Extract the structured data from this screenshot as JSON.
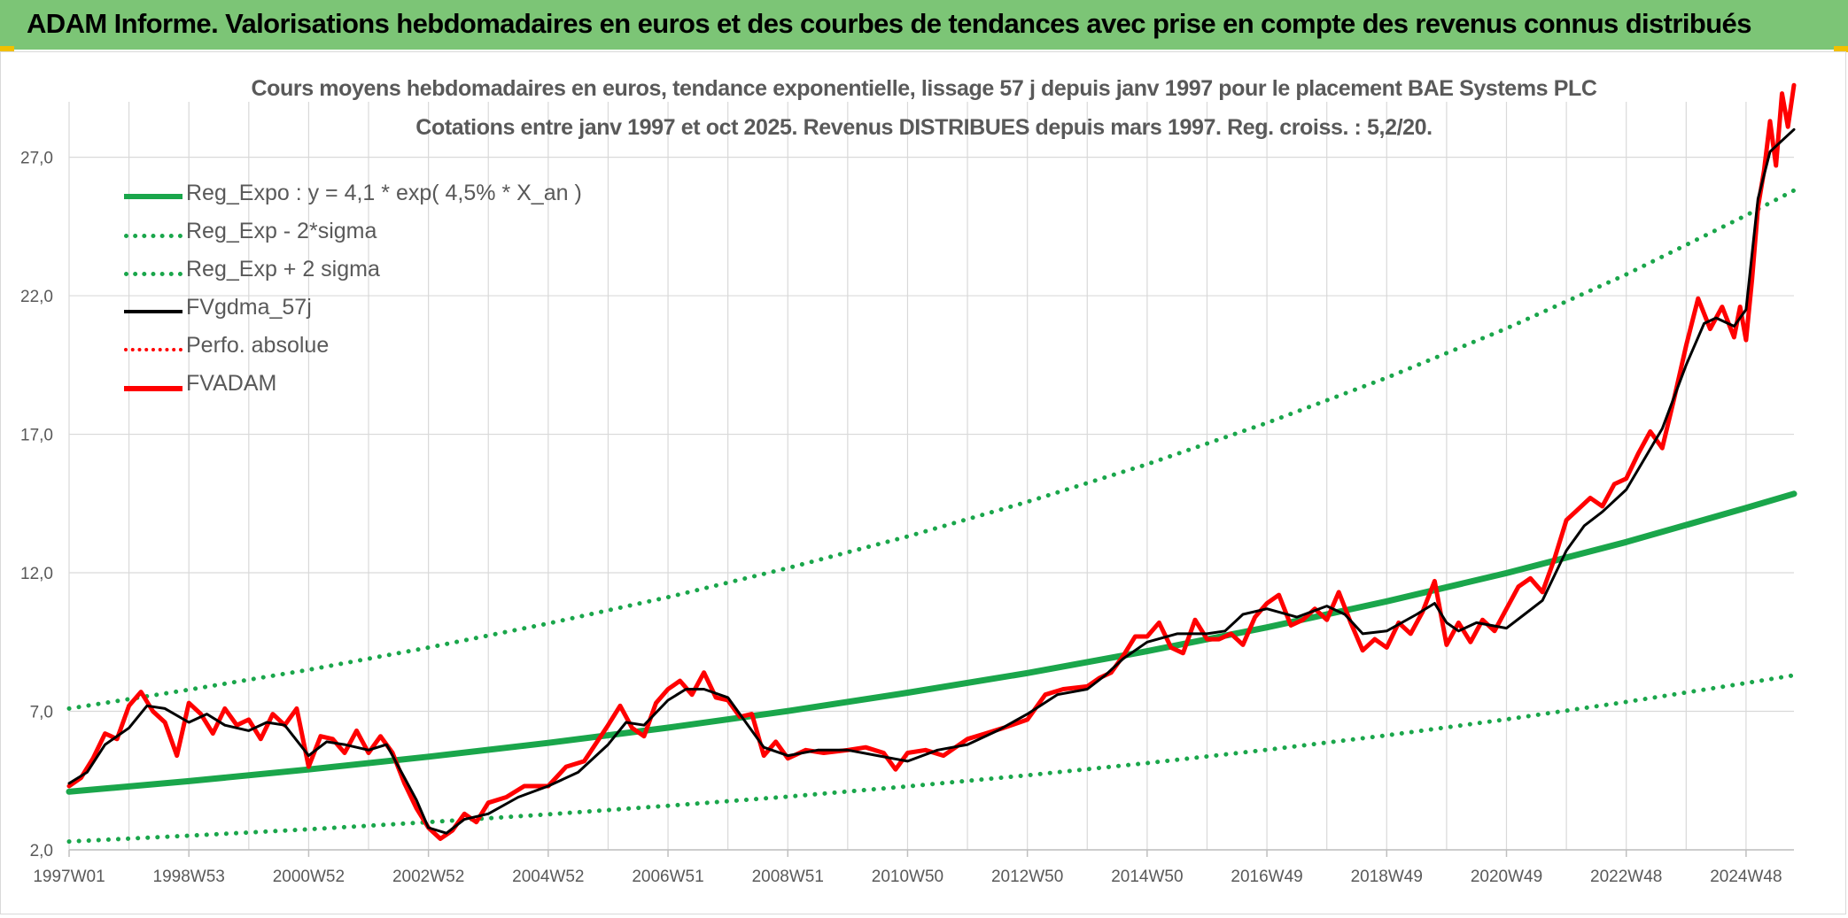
{
  "header": {
    "banner_title": "ADAM Informe. Valorisations hebdomadaires en euros et des courbes de tendances avec prise en compte des revenus connus distribués"
  },
  "colors": {
    "banner": "#7cc576",
    "regression": "#1aa64b",
    "bands": "#1aa64b",
    "fvgdma": "#000000",
    "fvadam": "#ff0000",
    "perfo": "#ff0000",
    "grid": "#d9d9d9",
    "text": "#595959"
  },
  "chart_data": {
    "type": "line",
    "title_line1": "Cours moyens hebdomadaires en euros, tendance exponentielle, lissage 57 j depuis janv 1997 pour le placement BAE Systems PLC",
    "title_line2": "Cotations entre janv 1997 et oct 2025. Revenus DISTRIBUES depuis mars 1997. Reg. croiss. : 5,2/20.",
    "xlabel": "",
    "ylabel": "",
    "x_range": [
      1997.0,
      2025.8
    ],
    "ylim": [
      2.0,
      29.0
    ],
    "y_ticks": [
      "2,0",
      "7,0",
      "12,0",
      "17,0",
      "22,0",
      "27,0"
    ],
    "y_tick_values": [
      2,
      7,
      12,
      17,
      22,
      27
    ],
    "x_ticks": [
      "1997W01",
      "1998W53",
      "2000W52",
      "2002W52",
      "2004W52",
      "2006W51",
      "2008W51",
      "2010W50",
      "2012W50",
      "2014W50",
      "2016W49",
      "2018W49",
      "2020W49",
      "2022W48",
      "2024W48"
    ],
    "x_tick_values": [
      1997.0,
      1999.0,
      2001.0,
      2003.0,
      2005.0,
      2007.0,
      2009.0,
      2011.0,
      2013.0,
      2015.0,
      2017.0,
      2019.0,
      2021.0,
      2023.0,
      2025.0
    ],
    "grid": true,
    "legend_position": "top-left",
    "legend": [
      {
        "label": "Reg_Expo : y = 4,1 * exp( 4,5% *  X_an )",
        "style": "solid-thick",
        "color": "#1aa64b"
      },
      {
        "label": "Reg_Exp - 2*sigma",
        "style": "dotted",
        "color": "#1aa64b"
      },
      {
        "label": "Reg_Exp + 2 sigma",
        "style": "dotted",
        "color": "#1aa64b"
      },
      {
        "label": "FVgdma_57j",
        "style": "solid",
        "color": "#000000"
      },
      {
        "label": "Perfo. absolue",
        "style": "dotted",
        "color": "#ff0000"
      },
      {
        "label": "FVADAM",
        "style": "solid-thick",
        "color": "#ff0000"
      }
    ],
    "series": [
      {
        "name": "Reg_Expo : y = 4,1 * exp( 4,5% *  X_an )",
        "x": [
          1997.0,
          1999.0,
          2001.0,
          2003.0,
          2005.0,
          2007.0,
          2009.0,
          2011.0,
          2013.0,
          2015.0,
          2017.0,
          2019.0,
          2021.0,
          2023.0,
          2025.0,
          2025.8
        ],
        "values": [
          4.1,
          4.48,
          4.9,
          5.36,
          5.86,
          6.41,
          7.01,
          7.67,
          8.38,
          9.17,
          10.03,
          10.97,
          11.99,
          13.11,
          14.34,
          14.85
        ]
      },
      {
        "name": "Reg_Exp - 2*sigma",
        "x": [
          1997.0,
          1999.0,
          2001.0,
          2003.0,
          2005.0,
          2007.0,
          2009.0,
          2011.0,
          2013.0,
          2015.0,
          2017.0,
          2019.0,
          2021.0,
          2023.0,
          2025.0,
          2025.8
        ],
        "values": [
          2.3,
          2.51,
          2.74,
          3.0,
          3.28,
          3.59,
          3.92,
          4.29,
          4.69,
          5.13,
          5.61,
          6.13,
          6.71,
          7.34,
          8.02,
          8.3
        ]
      },
      {
        "name": "Reg_Exp + 2 sigma",
        "x": [
          1997.0,
          1999.0,
          2001.0,
          2003.0,
          2005.0,
          2007.0,
          2009.0,
          2011.0,
          2013.0,
          2015.0,
          2017.0,
          2019.0,
          2021.0,
          2023.0,
          2025.0,
          2025.8
        ],
        "values": [
          7.1,
          7.78,
          8.5,
          9.3,
          10.17,
          11.12,
          12.17,
          13.31,
          14.56,
          15.92,
          17.41,
          19.04,
          20.82,
          22.77,
          24.9,
          25.8
        ]
      },
      {
        "name": "FVgdma_57j",
        "x": [
          1997.0,
          1997.3,
          1997.6,
          1998.0,
          1998.3,
          1998.6,
          1999.0,
          1999.3,
          1999.6,
          2000.0,
          2000.3,
          2000.6,
          2001.0,
          2001.3,
          2001.6,
          2002.0,
          2002.3,
          2002.6,
          2002.8,
          2003.0,
          2003.3,
          2003.6,
          2004.0,
          2004.5,
          2005.0,
          2005.5,
          2006.0,
          2006.3,
          2006.6,
          2007.0,
          2007.3,
          2007.6,
          2008.0,
          2008.3,
          2008.6,
          2009.0,
          2009.5,
          2010.0,
          2010.5,
          2011.0,
          2011.5,
          2012.0,
          2012.5,
          2013.0,
          2013.5,
          2014.0,
          2014.3,
          2014.6,
          2015.0,
          2015.5,
          2016.0,
          2016.3,
          2016.6,
          2017.0,
          2017.5,
          2018.0,
          2018.3,
          2018.6,
          2019.0,
          2019.5,
          2019.8,
          2020.0,
          2020.2,
          2020.5,
          2021.0,
          2021.3,
          2021.6,
          2022.0,
          2022.3,
          2022.6,
          2023.0,
          2023.3,
          2023.6,
          2024.0,
          2024.3,
          2024.5,
          2024.8,
          2025.0,
          2025.2,
          2025.4,
          2025.6,
          2025.8
        ],
        "values": [
          4.4,
          4.8,
          5.8,
          6.4,
          7.2,
          7.1,
          6.6,
          6.9,
          6.5,
          6.3,
          6.6,
          6.5,
          5.4,
          5.9,
          5.8,
          5.6,
          5.8,
          4.6,
          3.8,
          2.8,
          2.6,
          3.1,
          3.3,
          3.9,
          4.3,
          4.8,
          5.8,
          6.6,
          6.5,
          7.4,
          7.8,
          7.8,
          7.5,
          6.6,
          5.7,
          5.4,
          5.6,
          5.6,
          5.4,
          5.2,
          5.6,
          5.8,
          6.3,
          6.9,
          7.6,
          7.8,
          8.3,
          8.9,
          9.5,
          9.8,
          9.8,
          9.9,
          10.5,
          10.7,
          10.4,
          10.8,
          10.5,
          9.8,
          9.9,
          10.5,
          10.9,
          10.2,
          9.9,
          10.2,
          10.0,
          10.5,
          11.0,
          12.8,
          13.7,
          14.2,
          15.0,
          16.1,
          17.2,
          19.5,
          21.0,
          21.2,
          20.9,
          21.5,
          25.5,
          27.2,
          27.6,
          28.0
        ]
      },
      {
        "name": "FVADAM",
        "x": [
          1997.0,
          1997.2,
          1997.4,
          1997.6,
          1997.8,
          1998.0,
          1998.2,
          1998.4,
          1998.6,
          1998.8,
          1999.0,
          1999.2,
          1999.4,
          1999.6,
          1999.8,
          2000.0,
          2000.2,
          2000.4,
          2000.6,
          2000.8,
          2001.0,
          2001.2,
          2001.4,
          2001.6,
          2001.8,
          2002.0,
          2002.2,
          2002.4,
          2002.6,
          2002.8,
          2003.0,
          2003.2,
          2003.4,
          2003.6,
          2003.8,
          2004.0,
          2004.3,
          2004.6,
          2005.0,
          2005.3,
          2005.6,
          2006.0,
          2006.2,
          2006.4,
          2006.6,
          2006.8,
          2007.0,
          2007.2,
          2007.4,
          2007.6,
          2007.8,
          2008.0,
          2008.2,
          2008.4,
          2008.6,
          2008.8,
          2009.0,
          2009.3,
          2009.6,
          2010.0,
          2010.3,
          2010.6,
          2010.8,
          2011.0,
          2011.3,
          2011.6,
          2012.0,
          2012.3,
          2012.6,
          2013.0,
          2013.3,
          2013.6,
          2014.0,
          2014.2,
          2014.4,
          2014.6,
          2014.8,
          2015.0,
          2015.2,
          2015.4,
          2015.6,
          2015.8,
          2016.0,
          2016.2,
          2016.4,
          2016.6,
          2016.8,
          2017.0,
          2017.2,
          2017.4,
          2017.6,
          2017.8,
          2018.0,
          2018.2,
          2018.4,
          2018.6,
          2018.8,
          2019.0,
          2019.2,
          2019.4,
          2019.6,
          2019.8,
          2020.0,
          2020.2,
          2020.4,
          2020.6,
          2020.8,
          2021.0,
          2021.2,
          2021.4,
          2021.6,
          2021.8,
          2022.0,
          2022.2,
          2022.4,
          2022.6,
          2022.8,
          2023.0,
          2023.2,
          2023.4,
          2023.6,
          2023.8,
          2024.0,
          2024.2,
          2024.4,
          2024.6,
          2024.8,
          2024.9,
          2025.0,
          2025.1,
          2025.2,
          2025.3,
          2025.4,
          2025.5,
          2025.6,
          2025.7,
          2025.8
        ],
        "values": [
          4.3,
          4.6,
          5.3,
          6.2,
          6.0,
          7.2,
          7.7,
          7.0,
          6.6,
          5.4,
          7.3,
          6.9,
          6.2,
          7.1,
          6.5,
          6.7,
          6.0,
          6.9,
          6.5,
          7.1,
          5.0,
          6.1,
          6.0,
          5.5,
          6.3,
          5.5,
          6.1,
          5.5,
          4.4,
          3.5,
          2.8,
          2.4,
          2.7,
          3.3,
          3.0,
          3.7,
          3.9,
          4.3,
          4.3,
          5.0,
          5.2,
          6.5,
          7.2,
          6.4,
          6.1,
          7.3,
          7.8,
          8.1,
          7.6,
          8.4,
          7.5,
          7.4,
          6.8,
          6.9,
          5.4,
          5.9,
          5.3,
          5.6,
          5.5,
          5.6,
          5.7,
          5.5,
          4.9,
          5.5,
          5.6,
          5.4,
          6.0,
          6.2,
          6.4,
          6.7,
          7.6,
          7.8,
          7.9,
          8.2,
          8.4,
          9.0,
          9.7,
          9.7,
          10.2,
          9.3,
          9.1,
          10.3,
          9.6,
          9.6,
          9.8,
          9.4,
          10.4,
          10.9,
          11.2,
          10.1,
          10.3,
          10.7,
          10.3,
          11.3,
          10.2,
          9.2,
          9.6,
          9.3,
          10.2,
          9.8,
          10.6,
          11.7,
          9.4,
          10.2,
          9.5,
          10.3,
          9.9,
          10.7,
          11.5,
          11.8,
          11.3,
          12.5,
          13.9,
          14.3,
          14.7,
          14.4,
          15.2,
          15.4,
          16.3,
          17.1,
          16.5,
          18.3,
          20.2,
          21.9,
          20.8,
          21.6,
          20.5,
          21.6,
          20.4,
          22.6,
          25.2,
          26.5,
          28.3,
          26.7,
          29.3,
          28.1,
          29.6
        ]
      },
      {
        "name": "Perfo. absolue",
        "x": [],
        "values": []
      }
    ]
  }
}
